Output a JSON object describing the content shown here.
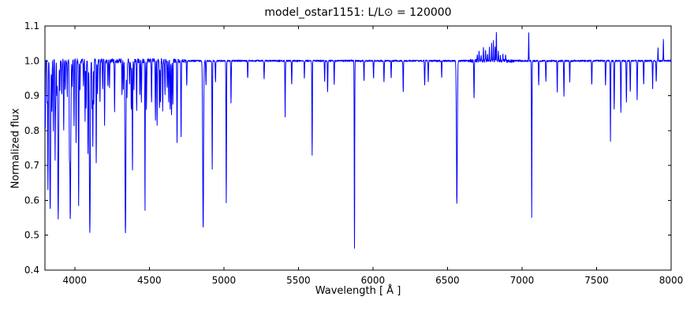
{
  "chart_data": {
    "type": "line",
    "title": "model_ostar1151: L/L⊙ = 120000",
    "xlabel": "Wavelength [ Å ]",
    "ylabel": "Normalized flux",
    "xlim": [
      3800,
      8000
    ],
    "ylim": [
      0.4,
      1.1
    ],
    "xticks": [
      4000,
      4500,
      5000,
      5500,
      6000,
      6500,
      7000,
      7500,
      8000
    ],
    "xtick_labels": [
      "4000",
      "4500",
      "5000",
      "5500",
      "6000",
      "6500",
      "7000",
      "7500",
      "8000"
    ],
    "yticks": [
      0.4,
      0.5,
      0.6,
      0.7,
      0.8,
      0.9,
      1.0,
      1.1
    ],
    "ytick_labels": [
      "0.4",
      "0.5",
      "0.6",
      "0.7",
      "0.8",
      "0.9",
      "1.0",
      "1.1"
    ],
    "line_color": "#0000ff",
    "axis_color": "#000000",
    "background_color": "#ffffff",
    "continuum": 1.0,
    "grid": false,
    "legend": "none",
    "absorption_lines": [
      [
        3802,
        0.8
      ],
      [
        3815,
        0.88
      ],
      [
        3820,
        0.63
      ],
      [
        3835,
        0.57,
        3
      ],
      [
        3846,
        0.85
      ],
      [
        3856,
        0.8
      ],
      [
        3868,
        0.72
      ],
      [
        3872,
        0.88
      ],
      [
        3880,
        0.9
      ],
      [
        3889,
        0.55,
        3
      ],
      [
        3900,
        0.92
      ],
      [
        3913,
        0.9
      ],
      [
        3926,
        0.8
      ],
      [
        3936,
        0.92
      ],
      [
        3950,
        0.9
      ],
      [
        3964,
        0.78
      ],
      [
        3970,
        0.54,
        3
      ],
      [
        3983,
        0.93
      ],
      [
        3995,
        0.82
      ],
      [
        4009,
        0.76
      ],
      [
        4026,
        0.58
      ],
      [
        4035,
        0.92
      ],
      [
        4058,
        0.93
      ],
      [
        4069,
        0.83
      ],
      [
        4076,
        0.86
      ],
      [
        4089,
        0.73
      ],
      [
        4101,
        0.5,
        3
      ],
      [
        4116,
        0.86
      ],
      [
        4121,
        0.76
      ],
      [
        4128,
        0.88
      ],
      [
        4144,
        0.7
      ],
      [
        4153,
        0.9
      ],
      [
        4169,
        0.88
      ],
      [
        4187,
        0.92
      ],
      [
        4200,
        0.82
      ],
      [
        4222,
        0.93
      ],
      [
        4233,
        0.92
      ],
      [
        4267,
        0.86
      ],
      [
        4317,
        0.9
      ],
      [
        4326,
        0.92
      ],
      [
        4340,
        0.5,
        3
      ],
      [
        4350,
        0.9
      ],
      [
        4367,
        0.93
      ],
      [
        4379,
        0.86
      ],
      [
        4387,
        0.68
      ],
      [
        4397,
        0.92
      ],
      [
        4415,
        0.86
      ],
      [
        4437,
        0.9
      ],
      [
        4447,
        0.88
      ],
      [
        4471,
        0.57
      ],
      [
        4481,
        0.86
      ],
      [
        4515,
        0.88
      ],
      [
        4541,
        0.83
      ],
      [
        4552,
        0.81
      ],
      [
        4568,
        0.86
      ],
      [
        4575,
        0.88
      ],
      [
        4590,
        0.86
      ],
      [
        4605,
        0.9
      ],
      [
        4620,
        0.92
      ],
      [
        4630,
        0.88
      ],
      [
        4640,
        0.86
      ],
      [
        4649,
        0.84
      ],
      [
        4658,
        0.88
      ],
      [
        4686,
        0.76
      ],
      [
        4713,
        0.78
      ],
      [
        4751,
        0.93
      ],
      [
        4861,
        0.52,
        3
      ],
      [
        4880,
        0.93
      ],
      [
        4922,
        0.69
      ],
      [
        4944,
        0.94
      ],
      [
        5016,
        0.59
      ],
      [
        5048,
        0.88
      ],
      [
        5160,
        0.95
      ],
      [
        5270,
        0.95
      ],
      [
        5411,
        0.84
      ],
      [
        5455,
        0.93
      ],
      [
        5540,
        0.95
      ],
      [
        5592,
        0.73
      ],
      [
        5676,
        0.94
      ],
      [
        5696,
        0.91
      ],
      [
        5740,
        0.93
      ],
      [
        5876,
        0.46
      ],
      [
        5940,
        0.94
      ],
      [
        6004,
        0.95
      ],
      [
        6074,
        0.94
      ],
      [
        6122,
        0.95
      ],
      [
        6203,
        0.91
      ],
      [
        6347,
        0.93
      ],
      [
        6371,
        0.94
      ],
      [
        6461,
        0.95
      ],
      [
        6563,
        0.59,
        3
      ],
      [
        6678,
        0.89
      ],
      [
        7065,
        0.55
      ],
      [
        7112,
        0.93
      ],
      [
        7160,
        0.94
      ],
      [
        7236,
        0.91
      ],
      [
        7281,
        0.9
      ],
      [
        7320,
        0.94
      ],
      [
        7468,
        0.93
      ],
      [
        7560,
        0.93
      ],
      [
        7593,
        0.77
      ],
      [
        7618,
        0.86
      ],
      [
        7663,
        0.85
      ],
      [
        7700,
        0.88
      ],
      [
        7726,
        0.91
      ],
      [
        7772,
        0.89
      ],
      [
        7816,
        0.93
      ],
      [
        7876,
        0.92
      ],
      [
        7900,
        0.94
      ]
    ],
    "emission_lines": [
      [
        6700,
        1.02
      ],
      [
        6712,
        1.03
      ],
      [
        6726,
        1.02
      ],
      [
        6741,
        1.04
      ],
      [
        6755,
        1.03
      ],
      [
        6768,
        1.02
      ],
      [
        6781,
        1.04
      ],
      [
        6796,
        1.05
      ],
      [
        6808,
        1.06
      ],
      [
        6820,
        1.04
      ],
      [
        6828,
        1.08
      ],
      [
        6841,
        1.03
      ],
      [
        6855,
        1.02
      ],
      [
        6872,
        1.02
      ],
      [
        6890,
        1.02
      ],
      [
        7045,
        1.08
      ],
      [
        7912,
        1.04
      ],
      [
        7948,
        1.06
      ]
    ],
    "noise": {
      "blue_amplitude": 0.007,
      "red_amplitude": 0.003,
      "cluster_amplitude": 0.005
    }
  }
}
